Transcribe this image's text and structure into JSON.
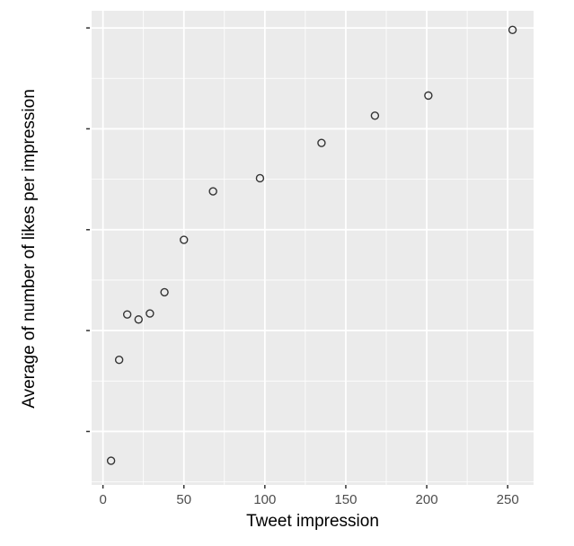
{
  "chart_data": {
    "type": "scatter",
    "title": "",
    "xlabel": "Tweet impression",
    "ylabel": "Average of number of likes per impression",
    "xlim": [
      -7,
      266
    ],
    "ylim": [
      -0.53,
      4.17
    ],
    "x_ticks": [
      0,
      50,
      100,
      150,
      200,
      250
    ],
    "x_tick_labels": [
      "0",
      "50",
      "100",
      "150",
      "200",
      "250"
    ],
    "y_ticks": [
      0,
      1,
      2,
      3,
      4
    ],
    "y_tick_labels": [
      "",
      "",
      "",
      "",
      ""
    ],
    "grid": true,
    "marker": "open-circle",
    "colors": {
      "panel": "#ebebeb",
      "grid": "#ffffff",
      "point": "#333333"
    },
    "points": [
      {
        "x": 5,
        "y": -0.29
      },
      {
        "x": 10,
        "y": 0.71
      },
      {
        "x": 15,
        "y": 1.16
      },
      {
        "x": 22,
        "y": 1.11
      },
      {
        "x": 29,
        "y": 1.17
      },
      {
        "x": 38,
        "y": 1.38
      },
      {
        "x": 50,
        "y": 1.9
      },
      {
        "x": 68,
        "y": 2.38
      },
      {
        "x": 97,
        "y": 2.51
      },
      {
        "x": 135,
        "y": 2.86
      },
      {
        "x": 168,
        "y": 3.13
      },
      {
        "x": 201,
        "y": 3.33
      },
      {
        "x": 253,
        "y": 3.98
      }
    ]
  }
}
